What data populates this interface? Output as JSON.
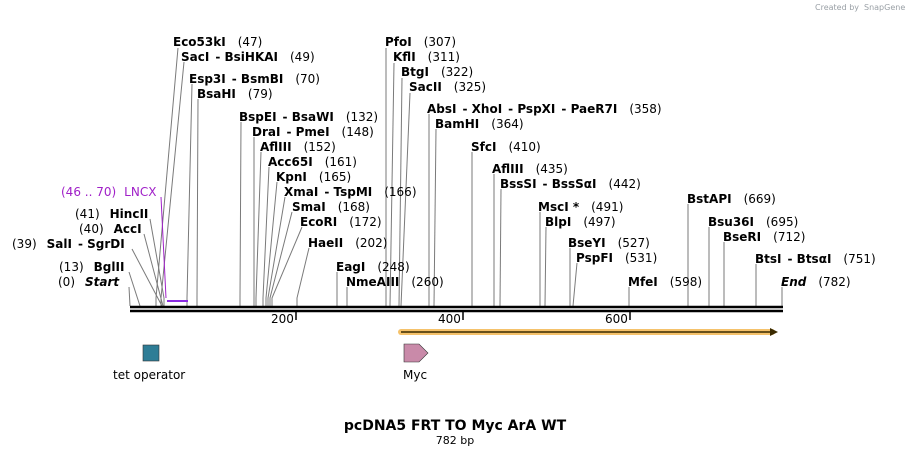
{
  "credit": "Created by",
  "credit_brand": "SnapGene",
  "title": "pcDNA5 FRT TO Myc ArA WT",
  "length_label": "782 bp",
  "sequence_length": 782,
  "ticks": [
    "200",
    "400",
    "600"
  ],
  "sites": [
    {
      "name": "Eco53kI",
      "pos": "(47)",
      "bp": 47
    },
    {
      "name": "SacI",
      "alt": "BsiHKAI",
      "pos": "(49)",
      "bp": 49
    },
    {
      "name": "Esp3I",
      "alt": "BsmBI",
      "pos": "(70)",
      "bp": 70
    },
    {
      "name": "BsaHI",
      "pos": "(79)",
      "bp": 79
    },
    {
      "name": "BspEI",
      "alt": "BsaWI",
      "pos": "(132)",
      "bp": 132
    },
    {
      "name": "DraI",
      "alt": "PmeI",
      "pos": "(148)",
      "bp": 148
    },
    {
      "name": "AflIII",
      "pos": "(152)",
      "bp": 152
    },
    {
      "name": "Acc65I",
      "pos": "(161)",
      "bp": 161
    },
    {
      "name": "KpnI",
      "pos": "(165)",
      "bp": 165
    },
    {
      "name": "XmaI",
      "alt": "TspMI",
      "pos": "(166)",
      "bp": 166
    },
    {
      "name": "SmaI",
      "pos": "(168)",
      "bp": 168
    },
    {
      "name": "EcoRI",
      "pos": "(172)",
      "bp": 172
    },
    {
      "name": "HaeII",
      "pos": "(202)",
      "bp": 202
    },
    {
      "name": "EagI",
      "pos": "(248)",
      "bp": 248
    },
    {
      "name": "NmeAIII",
      "pos": "(260)",
      "bp": 260
    },
    {
      "name": "PfoI",
      "pos": "(307)",
      "bp": 307
    },
    {
      "name": "KflI",
      "pos": "(311)",
      "bp": 311
    },
    {
      "name": "BtgI",
      "pos": "(322)",
      "bp": 322
    },
    {
      "name": "SacII",
      "pos": "(325)",
      "bp": 325
    },
    {
      "name": "AbsI",
      "alt": "XhoI",
      "alt2": "PspXI",
      "alt3": "PaeR7I",
      "pos": "(358)",
      "bp": 358
    },
    {
      "name": "BamHI",
      "pos": "(364)",
      "bp": 364
    },
    {
      "name": "SfcI",
      "pos": "(410)",
      "bp": 410
    },
    {
      "name": "AflIII",
      "pos": "(435)",
      "bp": 435
    },
    {
      "name": "BssSI",
      "alt": "BssSαI",
      "pos": "(442)",
      "bp": 442
    },
    {
      "name": "MscI *",
      "pos": "(491)",
      "bp": 491
    },
    {
      "name": "BlpI",
      "pos": "(497)",
      "bp": 497
    },
    {
      "name": "BseYI",
      "pos": "(527)",
      "bp": 527
    },
    {
      "name": "PspFI",
      "pos": "(531)",
      "bp": 531
    },
    {
      "name": "MfeI",
      "pos": "(598)",
      "bp": 598
    },
    {
      "name": "BstAPI",
      "pos": "(669)",
      "bp": 669
    },
    {
      "name": "Bsu36I",
      "pos": "(695)",
      "bp": 695
    },
    {
      "name": "BseRI",
      "pos": "(712)",
      "bp": 712
    },
    {
      "name": "BtsI",
      "alt": "BtsαI",
      "pos": "(751)",
      "bp": 751
    },
    {
      "name": "End",
      "pos": "(782)",
      "bp": 782
    },
    {
      "name": "HincII",
      "pos": "(41)",
      "bp": 41
    },
    {
      "name": "AccI",
      "pos": "(40)",
      "bp": 40
    },
    {
      "name": "SalI",
      "alt": "SgrDI",
      "pos": "(39)",
      "bp": 39
    },
    {
      "name": "BglII",
      "pos": "(13)",
      "bp": 13
    },
    {
      "name": "Start",
      "pos": "(0)",
      "bp": 0
    }
  ],
  "primer": {
    "label": "LNCX",
    "range": "(46 .. 70)",
    "start": 46,
    "end": 70
  },
  "features": [
    {
      "label": "tet operator",
      "color": "#2e7d96"
    },
    {
      "label": "Myc",
      "color": "#c98aa9"
    }
  ],
  "orf_color": "#f0a030"
}
